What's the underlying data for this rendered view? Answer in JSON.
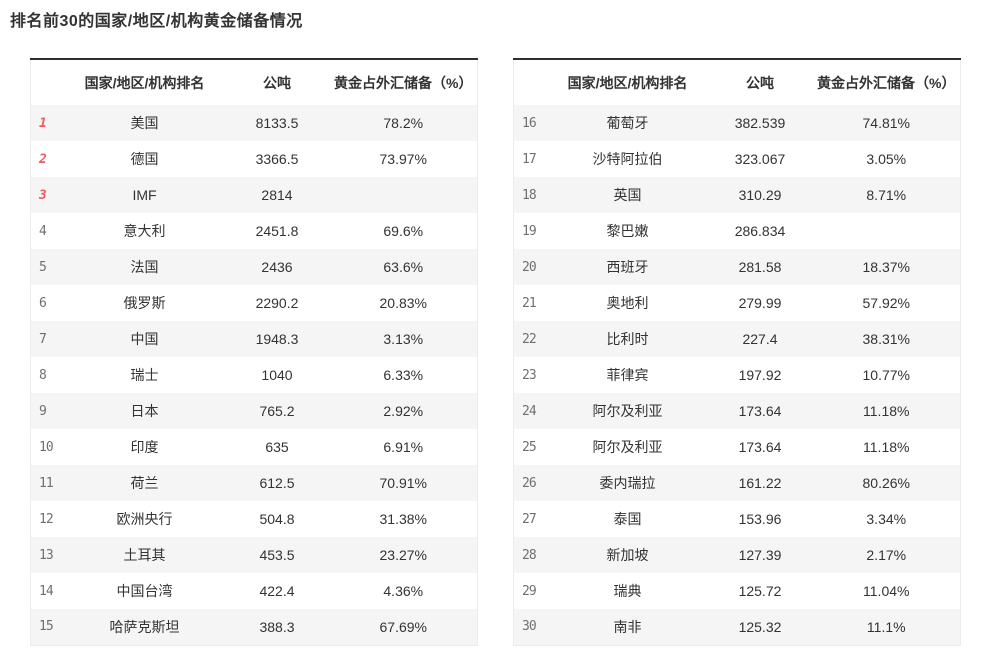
{
  "title": "排名前30的国家/地区/机构黄金储备情况",
  "colors": {
    "rank_top3": "#ef5a5e",
    "rank_normal": "#707070",
    "row_stripe": "#f5f5f5",
    "table_top_border": "#2e2e2e",
    "text": "#333333"
  },
  "chart_data": [
    {
      "type": "table",
      "columns": [
        "国家/地区/机构排名",
        "公吨",
        "黄金占外汇储备（%）"
      ],
      "rows": [
        [
          1,
          "美国",
          8133.5,
          "78.2%"
        ],
        [
          2,
          "德国",
          3366.5,
          "73.97%"
        ],
        [
          3,
          "IMF",
          2814,
          ""
        ],
        [
          4,
          "意大利",
          2451.8,
          "69.6%"
        ],
        [
          5,
          "法国",
          2436,
          "63.6%"
        ],
        [
          6,
          "俄罗斯",
          2290.2,
          "20.83%"
        ],
        [
          7,
          "中国",
          1948.3,
          "3.13%"
        ],
        [
          8,
          "瑞士",
          1040,
          "6.33%"
        ],
        [
          9,
          "日本",
          765.2,
          "2.92%"
        ],
        [
          10,
          "印度",
          635,
          "6.91%"
        ],
        [
          11,
          "荷兰",
          612.5,
          "70.91%"
        ],
        [
          12,
          "欧洲央行",
          504.8,
          "31.38%"
        ],
        [
          13,
          "土耳其",
          453.5,
          "23.27%"
        ],
        [
          14,
          "中国台湾",
          422.4,
          "4.36%"
        ],
        [
          15,
          "哈萨克斯坦",
          388.3,
          "67.69%"
        ]
      ]
    },
    {
      "type": "table",
      "columns": [
        "国家/地区/机构排名",
        "公吨",
        "黄金占外汇储备（%）"
      ],
      "rows": [
        [
          16,
          "葡萄牙",
          382.539,
          "74.81%"
        ],
        [
          17,
          "沙特阿拉伯",
          323.067,
          "3.05%"
        ],
        [
          18,
          "英国",
          310.29,
          "8.71%"
        ],
        [
          19,
          "黎巴嫩",
          286.834,
          ""
        ],
        [
          20,
          "西班牙",
          281.58,
          "18.37%"
        ],
        [
          21,
          "奥地利",
          279.99,
          "57.92%"
        ],
        [
          22,
          "比利时",
          227.4,
          "38.31%"
        ],
        [
          23,
          "菲律宾",
          197.92,
          "10.77%"
        ],
        [
          24,
          "阿尔及利亚",
          173.64,
          "11.18%"
        ],
        [
          25,
          "阿尔及利亚",
          173.64,
          "11.18%"
        ],
        [
          26,
          "委内瑞拉",
          161.22,
          "80.26%"
        ],
        [
          27,
          "泰国",
          153.96,
          "3.34%"
        ],
        [
          28,
          "新加坡",
          127.39,
          "2.17%"
        ],
        [
          29,
          "瑞典",
          125.72,
          "11.04%"
        ],
        [
          30,
          "南非",
          125.32,
          "11.1%"
        ]
      ]
    }
  ]
}
